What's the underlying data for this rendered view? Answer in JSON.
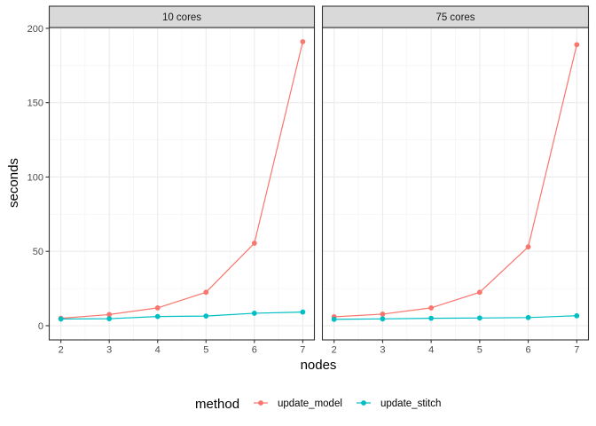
{
  "chart_data": {
    "type": "line",
    "facet_labels": [
      "10 cores",
      "75 cores"
    ],
    "xlabel": "nodes",
    "ylabel": "seconds",
    "x": [
      2,
      3,
      4,
      5,
      6,
      7
    ],
    "xlim": [
      2,
      7
    ],
    "ylim": [
      0,
      200
    ],
    "x_ticks": [
      "2",
      "3",
      "4",
      "5",
      "6",
      "7"
    ],
    "y_ticks": [
      "0",
      "50",
      "100",
      "150",
      "200"
    ],
    "y_tick_values": [
      0,
      50,
      100,
      150,
      200
    ],
    "grid": true,
    "legend": {
      "title": "method",
      "position": "bottom",
      "entries": [
        "update_model",
        "update_stitch"
      ]
    },
    "colors": {
      "update_model": "#F8766D",
      "update_stitch": "#00BFC4"
    },
    "panels": [
      {
        "facet": "10 cores",
        "series": [
          {
            "name": "update_model",
            "values": [
              5,
              7.5,
              12,
              22.5,
              55.5,
              191
            ]
          },
          {
            "name": "update_stitch",
            "values": [
              4.5,
              4.7,
              6.2,
              6.5,
              8.4,
              9.2
            ]
          }
        ]
      },
      {
        "facet": "75 cores",
        "series": [
          {
            "name": "update_model",
            "values": [
              6,
              7.8,
              12,
              22.5,
              53,
              189
            ]
          },
          {
            "name": "update_stitch",
            "values": [
              4.3,
              4.6,
              5,
              5.2,
              5.5,
              6.7
            ]
          }
        ]
      }
    ]
  }
}
